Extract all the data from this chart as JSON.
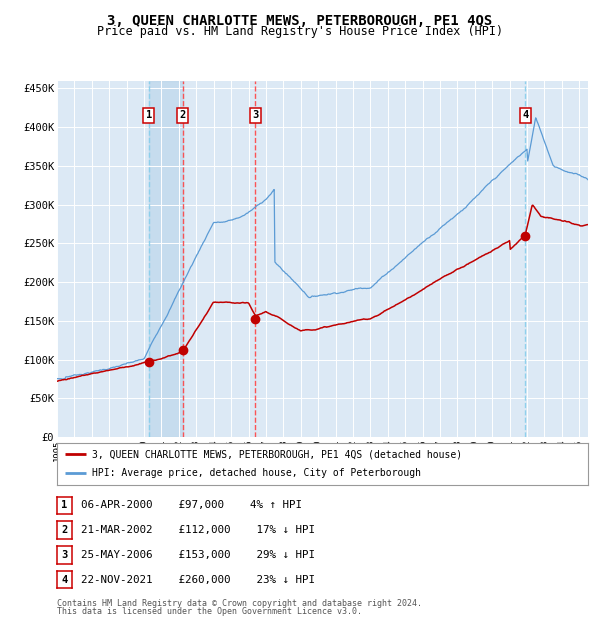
{
  "title": "3, QUEEN CHARLOTTE MEWS, PETERBOROUGH, PE1 4QS",
  "subtitle": "Price paid vs. HM Land Registry's House Price Index (HPI)",
  "title_fontsize": 10,
  "subtitle_fontsize": 8.5,
  "background_color": "#ffffff",
  "plot_bg_color": "#dce9f5",
  "grid_color": "#ffffff",
  "ylim": [
    0,
    460000
  ],
  "yticks": [
    0,
    50000,
    100000,
    150000,
    200000,
    250000,
    300000,
    350000,
    400000,
    450000
  ],
  "ytick_labels": [
    "£0",
    "£50K",
    "£100K",
    "£150K",
    "£200K",
    "£250K",
    "£300K",
    "£350K",
    "£400K",
    "£450K"
  ],
  "hpi_color": "#5b9bd5",
  "price_color": "#c00000",
  "transactions": [
    {
      "num": 1,
      "date": "06-APR-2000",
      "price": 97000,
      "pct": "4%",
      "dir": "↑",
      "x_year": 2000.27,
      "vline_color": "#87CEEB"
    },
    {
      "num": 2,
      "date": "21-MAR-2002",
      "price": 112000,
      "pct": "17%",
      "dir": "↓",
      "x_year": 2002.22,
      "vline_color": "#ff4444"
    },
    {
      "num": 3,
      "date": "25-MAY-2006",
      "price": 153000,
      "pct": "29%",
      "dir": "↓",
      "x_year": 2006.4,
      "vline_color": "#ff4444"
    },
    {
      "num": 4,
      "date": "22-NOV-2021",
      "price": 260000,
      "pct": "23%",
      "dir": "↓",
      "x_year": 2021.9,
      "vline_color": "#87CEEB"
    }
  ],
  "legend_line1": "3, QUEEN CHARLOTTE MEWS, PETERBOROUGH, PE1 4QS (detached house)",
  "legend_line2": "HPI: Average price, detached house, City of Peterborough",
  "footer1": "Contains HM Land Registry data © Crown copyright and database right 2024.",
  "footer2": "This data is licensed under the Open Government Licence v3.0.",
  "xmin": 1995,
  "xmax": 2025.5
}
